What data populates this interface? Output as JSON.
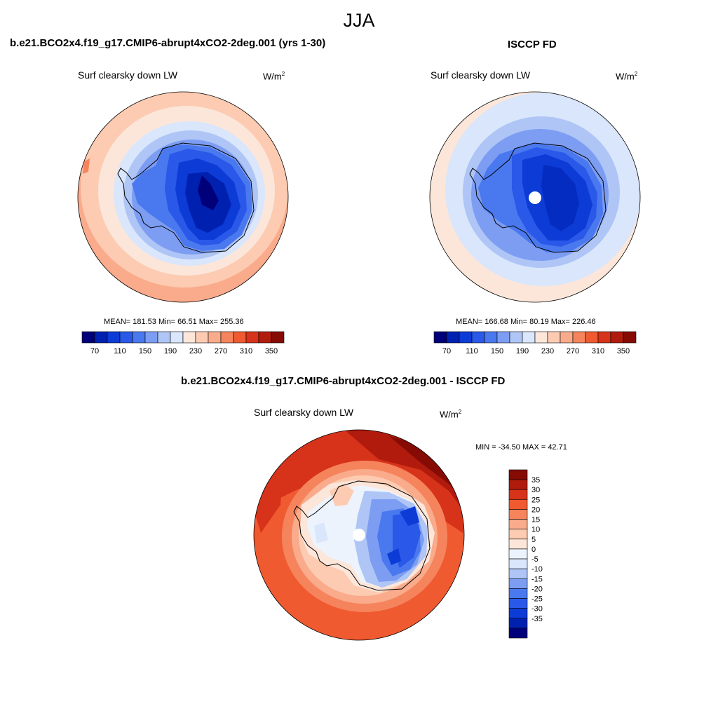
{
  "season": "JJA",
  "left_panel": {
    "title": "b.e21.BCO2x4.f19_g17.CMIP6-abrupt4xCO2-2deg.001 (yrs 1-30)",
    "variable": "Surf clearsky down LW",
    "units_base": "W/m",
    "units_exp": "2",
    "stats": "MEAN= 181.53  Min=  66.51  Max= 255.36"
  },
  "right_panel": {
    "title": "ISCCP FD",
    "variable": "Surf clearsky down LW",
    "units_base": "W/m",
    "units_exp": "2",
    "stats": "MEAN= 166.68  Min=  80.19  Max= 226.46"
  },
  "diff_panel": {
    "title": "b.e21.BCO2x4.f19_g17.CMIP6-abrupt4xCO2-2deg.001 - ISCCP FD",
    "variable": "Surf clearsky down LW",
    "units_base": "W/m",
    "units_exp": "2",
    "stats": "MIN = -34.50 MAX =  42.71"
  },
  "abs_colorbar": {
    "colors": [
      "#00007a",
      "#0021b0",
      "#0c3bd6",
      "#2a58e8",
      "#4a78ee",
      "#7c9df2",
      "#aec5f6",
      "#d9e6fb",
      "#fce6da",
      "#fccbb2",
      "#f9ab8b",
      "#f5845d",
      "#f05a30",
      "#d7321a",
      "#b01b0d",
      "#860b04"
    ],
    "tick_labels": [
      "70",
      "110",
      "150",
      "190",
      "230",
      "270",
      "310",
      "350"
    ]
  },
  "diff_colorbar": {
    "colors": [
      "#860b04",
      "#b01b0d",
      "#d7321a",
      "#f05a30",
      "#f5845d",
      "#f9ab8b",
      "#fccbb2",
      "#fce6da",
      "#edf3fc",
      "#d9e6fb",
      "#aec5f6",
      "#7c9df2",
      "#4a78ee",
      "#2a58e8",
      "#0c3bd6",
      "#0021b0",
      "#00007a"
    ],
    "tick_labels": [
      "35",
      "30",
      "25",
      "20",
      "15",
      "10",
      "5",
      "0",
      "-5",
      "-10",
      "-15",
      "-20",
      "-25",
      "-30",
      "-35"
    ]
  }
}
